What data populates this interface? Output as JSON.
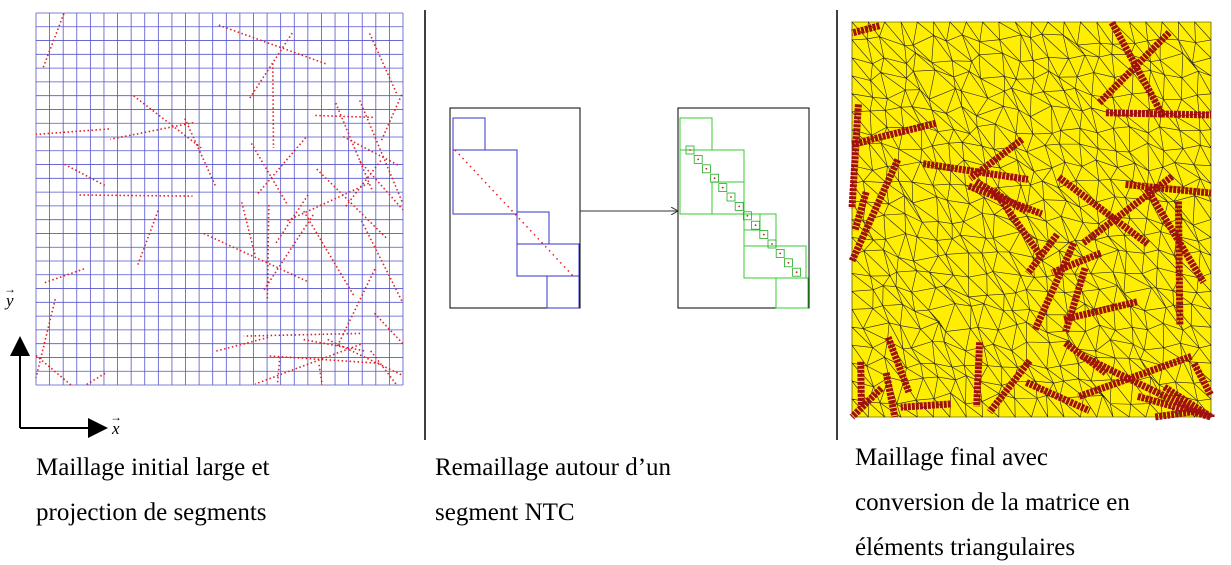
{
  "figure": {
    "axes": {
      "y_label": "y",
      "x_label": "x"
    },
    "captions": [
      {
        "lines": [
          "Maillage initial large et",
          "projection de segments"
        ]
      },
      {
        "lines": [
          "Remaillage autour d’un",
          "segment NTC"
        ]
      },
      {
        "lines": [
          "Maillage final avec",
          "conversion de la matrice en",
          "éléments triangulaires"
        ]
      }
    ]
  }
}
